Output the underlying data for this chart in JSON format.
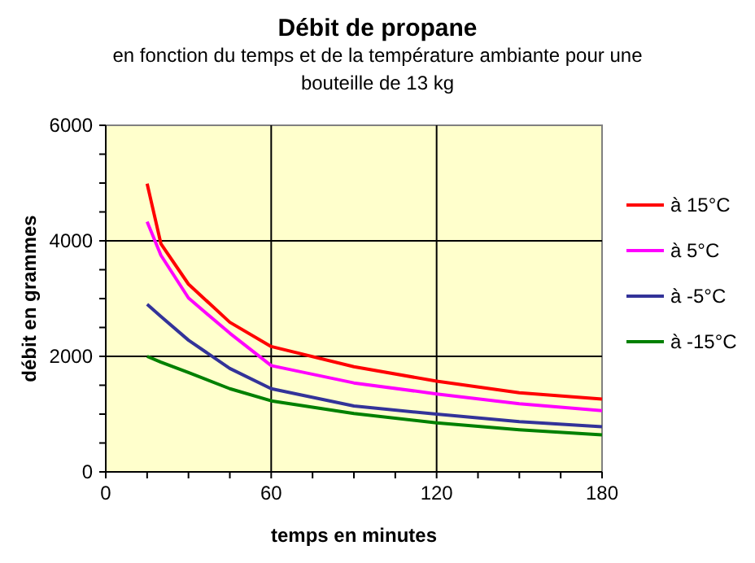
{
  "chart_data": {
    "type": "line",
    "title": "Débit de propane",
    "subtitle": "en fonction du temps et de la température ambiante pour une bouteille de 13 kg",
    "xlabel": "temps en minutes",
    "ylabel": "débit en grammes",
    "x": [
      15,
      20,
      30,
      45,
      60,
      90,
      120,
      150,
      180
    ],
    "series": [
      {
        "name": "à 15°C",
        "color": "#ff0000",
        "values": [
          4990,
          3950,
          3250,
          2590,
          2170,
          1820,
          1570,
          1370,
          1260
        ]
      },
      {
        "name": "à 5°C",
        "color": "#ff00ff",
        "values": [
          4330,
          3750,
          3010,
          2400,
          1840,
          1540,
          1350,
          1180,
          1060
        ]
      },
      {
        "name": "à -5°C",
        "color": "#333399",
        "values": [
          2900,
          2690,
          2280,
          1790,
          1440,
          1140,
          1000,
          870,
          780
        ]
      },
      {
        "name": "à -15°C",
        "color": "#008000",
        "values": [
          2000,
          1900,
          1720,
          1440,
          1230,
          1010,
          850,
          730,
          640
        ]
      }
    ],
    "xlim": [
      0,
      180
    ],
    "ylim": [
      0,
      6000
    ],
    "xticks": [
      0,
      {
        "value": 15,
        "label": null
      },
      {
        "value": 30,
        "label": null
      },
      {
        "value": 45,
        "label": null
      },
      60,
      {
        "value": 75,
        "label": null
      },
      {
        "value": 90,
        "label": null
      },
      {
        "value": 105,
        "label": null
      },
      120,
      {
        "value": 135,
        "label": null
      },
      {
        "value": 150,
        "label": null
      },
      {
        "value": 165,
        "label": null
      },
      180
    ],
    "yticks": [
      0,
      {
        "value": 500,
        "label": null
      },
      {
        "value": 1000,
        "label": null
      },
      {
        "value": 1500,
        "label": null
      },
      2000,
      {
        "value": 2500,
        "label": null
      },
      {
        "value": 3000,
        "label": null
      },
      {
        "value": 3500,
        "label": null
      },
      4000,
      {
        "value": 4500,
        "label": null
      },
      {
        "value": 5000,
        "label": null
      },
      {
        "value": 5500,
        "label": null
      },
      6000
    ],
    "grid": true,
    "legend": "right",
    "marker": "none",
    "line_style": "solid"
  }
}
